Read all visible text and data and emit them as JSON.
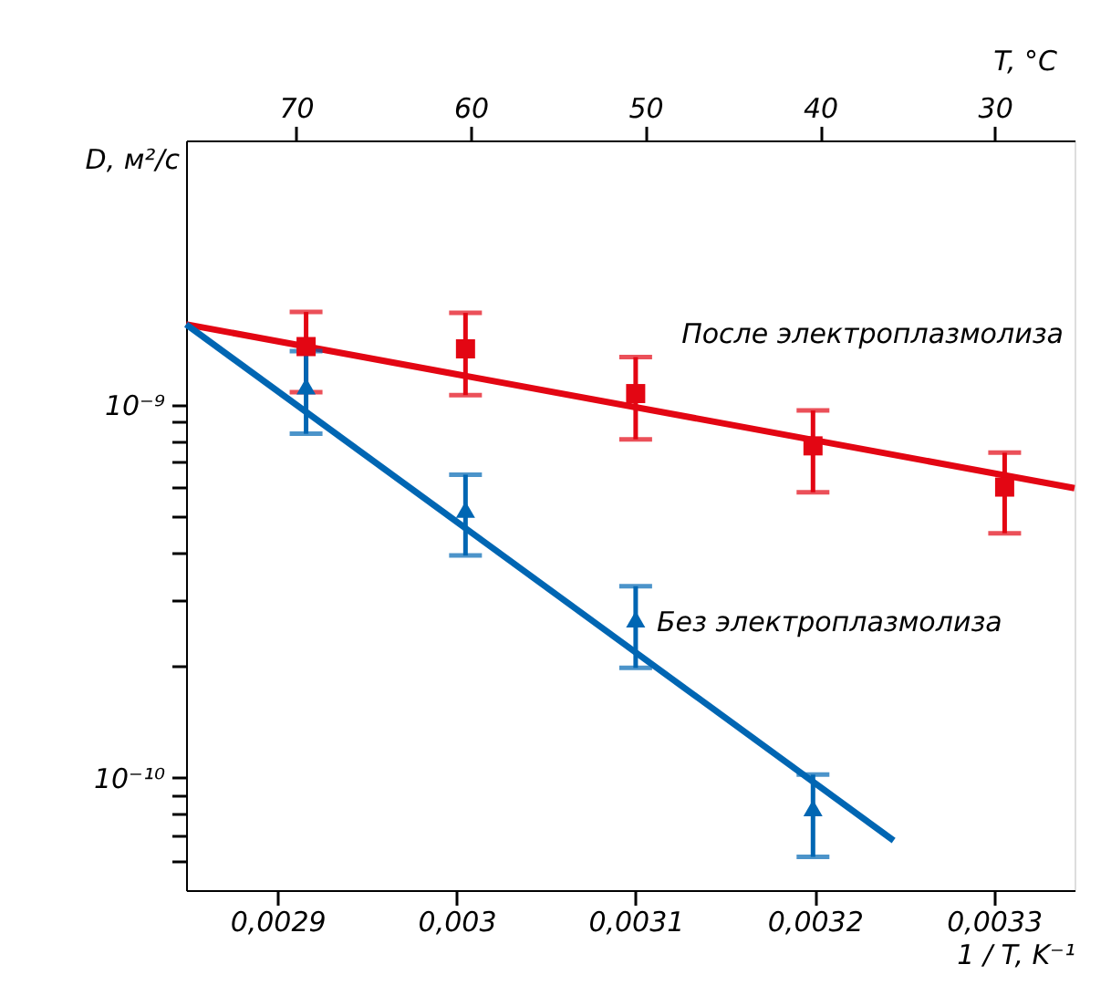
{
  "chart_data": {
    "type": "scatter",
    "xlabel": "1 / T, K⁻¹",
    "x2label": "T, °C",
    "ylabel": "D, м²/с",
    "log": "y",
    "grid": false,
    "xlim": [
      0.002849,
      0.003345
    ],
    "xticks": [
      {
        "value": 0.0029,
        "label": "0,0029"
      },
      {
        "value": 0.003,
        "label": "0,003"
      },
      {
        "value": 0.0031,
        "label": "0,0031"
      },
      {
        "value": 0.0032,
        "label": "0,0032"
      },
      {
        "value": 0.0033,
        "label": "0,0033"
      }
    ],
    "x2lim": [
      76.29,
      25.44
    ],
    "x2ticks": [
      70,
      60,
      50,
      40,
      30
    ],
    "ylim": [
      5e-11,
      5.1e-09
    ],
    "yticks": [
      {
        "value": 6e-11,
        "label": null
      },
      {
        "value": 7e-11,
        "label": null
      },
      {
        "value": 8e-11,
        "label": null
      },
      {
        "value": 9e-11,
        "label": null
      },
      {
        "value": 1e-10,
        "label": "10⁻¹⁰"
      },
      {
        "value": 2e-10,
        "label": null
      },
      {
        "value": 3e-10,
        "label": null
      },
      {
        "value": 4e-10,
        "label": null
      },
      {
        "value": 5e-10,
        "label": null
      },
      {
        "value": 6e-10,
        "label": null
      },
      {
        "value": 7e-10,
        "label": null
      },
      {
        "value": 8e-10,
        "label": null
      },
      {
        "value": 9e-10,
        "label": null
      },
      {
        "value": 1e-09,
        "label": "10⁻⁹"
      }
    ],
    "series": [
      {
        "name": "После электроплазмолиза",
        "color": "#e30613",
        "marker": "square",
        "x": [
          0.002916,
          0.003005,
          0.0031,
          0.003199,
          0.003306
        ],
        "values": [
          1.43e-09,
          1.41e-09,
          1.07e-09,
          7.75e-10,
          6.01e-10
        ],
        "errors": [
          [
            1.08e-09,
            1.77e-09
          ],
          [
            1.06e-09,
            1.76e-09
          ],
          [
            8.07e-10,
            1.34e-09
          ],
          [
            5.82e-10,
            9.64e-10
          ],
          [
            4.52e-10,
            7.43e-10
          ]
        ]
      },
      {
        "name": "Без электроплазмолиза",
        "color": "#0066b3",
        "marker": "triangle",
        "x": [
          0.002916,
          0.003005,
          0.0031,
          0.003199
        ],
        "values": [
          1.12e-09,
          5.23e-10,
          2.66e-10,
          8.3e-11
        ],
        "errors": [
          [
            8.35e-10,
            1.39e-09
          ],
          [
            3.94e-10,
            6.49e-10
          ],
          [
            1.97e-10,
            3.26e-10
          ],
          [
            6.14e-11,
            1.02e-10
          ]
        ]
      },
      {
        "type": "line",
        "color": "#e30613",
        "x": [
          0.002849,
          0.003345
        ],
        "values": [
          1.64e-09,
          5.97e-10
        ]
      },
      {
        "type": "line",
        "color": "#0066b3",
        "x": [
          0.002849,
          0.003244
        ],
        "values": [
          1.64e-09,
          6.79e-11
        ]
      }
    ]
  }
}
